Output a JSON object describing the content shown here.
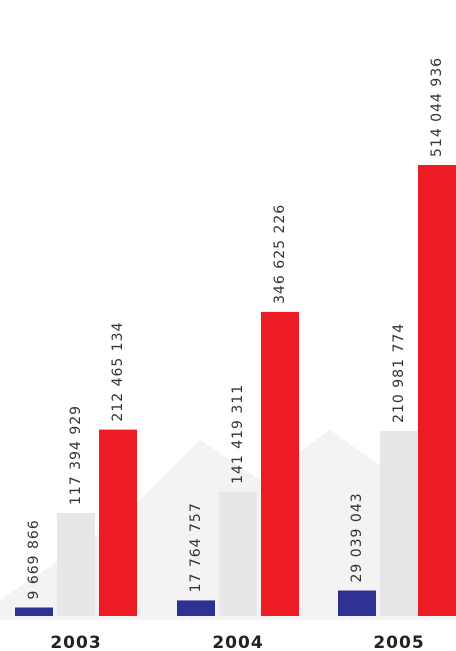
{
  "chart_data": {
    "type": "bar",
    "categories": [
      "2003",
      "2004",
      "2005"
    ],
    "series": [
      {
        "color": "#2e3192",
        "values": [
          9669866,
          17764757,
          29039043
        ],
        "value_labels": [
          "9 669 866",
          "17 764 757",
          "29 039 043"
        ]
      },
      {
        "color": "#e6e7e8",
        "values": [
          117394929,
          141419311,
          210981774
        ],
        "value_labels": [
          "117 394 929",
          "141 419 311",
          "210 981 774"
        ]
      },
      {
        "color": "#ed1c24",
        "values": [
          212465134,
          346625226,
          514044936
        ],
        "value_labels": [
          "212 465 134",
          "346 625 226",
          "514 044 936"
        ]
      }
    ]
  }
}
